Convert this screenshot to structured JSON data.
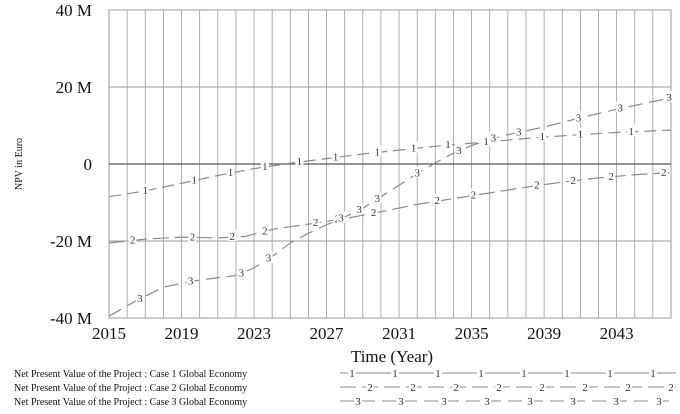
{
  "chart_data": {
    "type": "line",
    "title": "",
    "xlabel": "Time (Year)",
    "ylabel": "NPV in Euro",
    "xlim": [
      2015,
      2046
    ],
    "ylim": [
      -40000000,
      40000000
    ],
    "x_ticks": [
      2015,
      2019,
      2023,
      2027,
      2031,
      2035,
      2039,
      2043
    ],
    "x_tick_labels": [
      "2015",
      "2019",
      "2023",
      "2027",
      "2031",
      "2035",
      "2039",
      "2043"
    ],
    "y_ticks": [
      40000000,
      20000000,
      0,
      -20000000,
      -40000000
    ],
    "y_tick_labels": [
      "40 M",
      "20 M",
      "0",
      "-20 M",
      "-40 M"
    ],
    "grid": true,
    "legend_position": "bottom",
    "colors": {
      "line": "#8a8a8a",
      "grid": "#9a9a9a",
      "axis": "#555555"
    },
    "series": [
      {
        "name": "Net Present Value of the Project : Case 1 Global Economy",
        "marker": "1",
        "points": [
          [
            2015,
            -8500000.0
          ],
          [
            2017,
            -7000000.0
          ],
          [
            2019,
            -5000000.0
          ],
          [
            2021,
            -3000000.0
          ],
          [
            2023,
            -1200000.0
          ],
          [
            2025,
            200000.0
          ],
          [
            2027,
            1400000.0
          ],
          [
            2029,
            2600000.0
          ],
          [
            2031,
            3600000.0
          ],
          [
            2033,
            4600000.0
          ],
          [
            2035,
            5400000.0
          ],
          [
            2037,
            6200000.0
          ],
          [
            2039,
            7000000.0
          ],
          [
            2041,
            7600000.0
          ],
          [
            2043,
            8200000.0
          ],
          [
            2046,
            8800000.0
          ]
        ],
        "markers_x": [
          2017,
          2019.7,
          2021.7,
          2023.6,
          2025.5,
          2027.5,
          2029.8,
          2031.8,
          2033.7,
          2035.8,
          2038.9,
          2041,
          2043.8
        ]
      },
      {
        "name": "Net Present Value of the Project : Case 2 Global Economy",
        "marker": "2",
        "points": [
          [
            2015,
            -20500000.0
          ],
          [
            2017,
            -19500000.0
          ],
          [
            2019,
            -19000000.0
          ],
          [
            2021,
            -19200000.0
          ],
          [
            2022.5,
            -18800000.0
          ],
          [
            2024,
            -17000000.0
          ],
          [
            2026,
            -15600000.0
          ],
          [
            2028,
            -14200000.0
          ],
          [
            2030,
            -12400000.0
          ],
          [
            2032,
            -10500000.0
          ],
          [
            2034,
            -9000000.0
          ],
          [
            2036,
            -7500000.0
          ],
          [
            2038,
            -6000000.0
          ],
          [
            2040,
            -4700000.0
          ],
          [
            2042,
            -3600000.0
          ],
          [
            2044,
            -2800000.0
          ],
          [
            2046,
            -2200000.0
          ]
        ],
        "markers_x": [
          2016.3,
          2019.6,
          2021.8,
          2023.6,
          2026.4,
          2027.6,
          2029.6,
          2033.1,
          2035.1,
          2038.6,
          2040.6,
          2042.7,
          2045.6
        ]
      },
      {
        "name": "Net Present Value of the Project : Case 3 Global Economy",
        "marker": "3",
        "points": [
          [
            2015,
            -39500000.0
          ],
          [
            2016.5,
            -35500000.0
          ],
          [
            2018,
            -32000000.0
          ],
          [
            2019.5,
            -30500000.0
          ],
          [
            2021,
            -29500000.0
          ],
          [
            2022,
            -29000000.0
          ],
          [
            2023,
            -27000000.0
          ],
          [
            2024,
            -24000000.0
          ],
          [
            2025,
            -20500000.0
          ],
          [
            2026,
            -18000000.0
          ],
          [
            2027,
            -15800000.0
          ],
          [
            2028,
            -13800000.0
          ],
          [
            2029,
            -11500000.0
          ],
          [
            2030,
            -8500000.0
          ],
          [
            2031,
            -5500000.0
          ],
          [
            2032,
            -2500000.0
          ],
          [
            2033,
            300000.0
          ],
          [
            2034,
            2800000.0
          ],
          [
            2035,
            4800000.0
          ],
          [
            2036,
            6300000.0
          ],
          [
            2037,
            7600000.0
          ],
          [
            2039,
            9600000.0
          ],
          [
            2041,
            12000000.0
          ],
          [
            2043,
            14200000.0
          ],
          [
            2046,
            17200000.0
          ]
        ],
        "markers_x": [
          2016.7,
          2019.5,
          2022.3,
          2023.8,
          2027.8,
          2028.8,
          2029.8,
          2032.0,
          2034.3,
          2036.2,
          2037.6,
          2040.9,
          2043.2,
          2045.9
        ]
      }
    ]
  }
}
